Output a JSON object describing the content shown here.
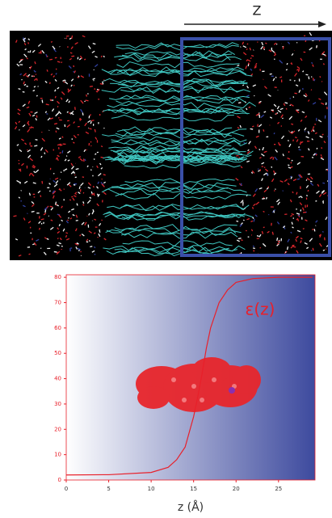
{
  "figure": {
    "direction_label": "Z"
  },
  "chart_data": {
    "type": "line",
    "x": [
      0,
      5,
      10,
      12,
      13,
      14,
      15,
      15.5,
      16,
      16.5,
      17,
      18,
      19,
      20,
      22,
      25,
      29
    ],
    "values": [
      2,
      2.1,
      3,
      5,
      8,
      13,
      25,
      33,
      42,
      52,
      60,
      70,
      75,
      78,
      79.5,
      80,
      80
    ],
    "color": "#e8202a",
    "annotation": "ε(z)",
    "x_label": "z (Å)",
    "xlim": [
      0,
      29.3
    ],
    "ylim": [
      0,
      81
    ],
    "xticks": [
      0,
      5,
      10,
      15,
      20,
      25
    ],
    "yticks": [
      0,
      10,
      20,
      30,
      40,
      50,
      60,
      70,
      80
    ]
  }
}
